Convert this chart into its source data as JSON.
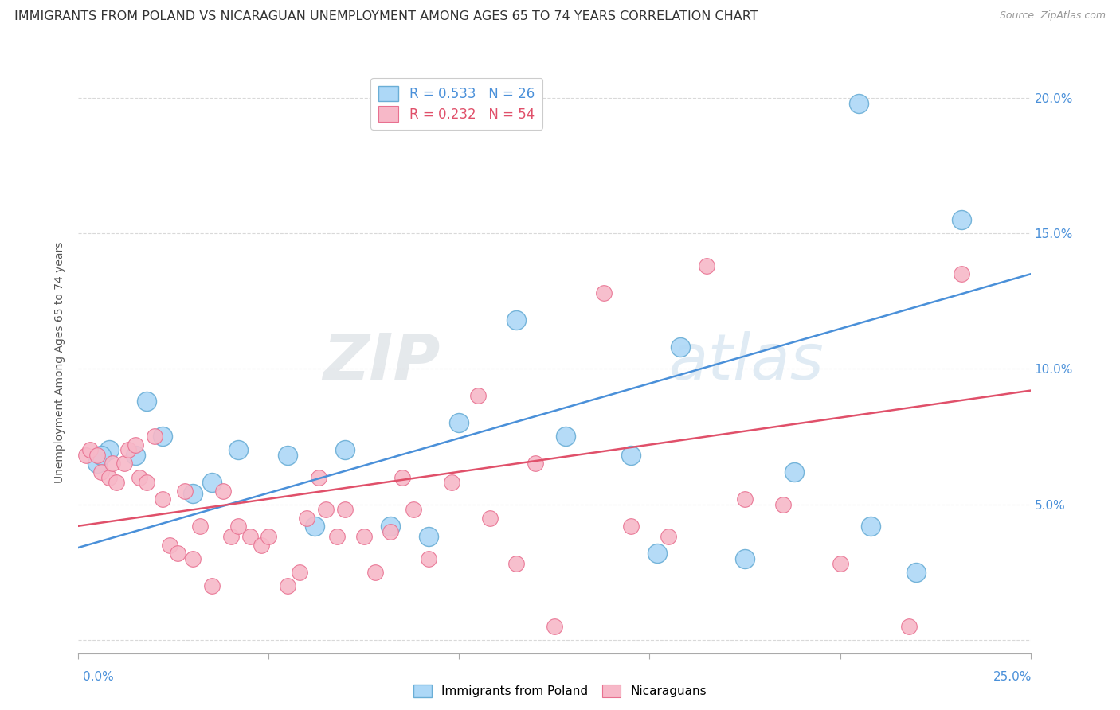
{
  "title": "IMMIGRANTS FROM POLAND VS NICARAGUAN UNEMPLOYMENT AMONG AGES 65 TO 74 YEARS CORRELATION CHART",
  "source": "Source: ZipAtlas.com",
  "ylabel": "Unemployment Among Ages 65 to 74 years",
  "xlim": [
    0.0,
    0.25
  ],
  "ylim": [
    -0.005,
    0.21
  ],
  "xticks": [
    0.0,
    0.05,
    0.1,
    0.15,
    0.2,
    0.25
  ],
  "yticks": [
    0.0,
    0.05,
    0.1,
    0.15,
    0.2
  ],
  "xtick_labels_bottom": [
    "0.0%",
    "",
    "",
    "",
    "",
    "25.0%"
  ],
  "ytick_labels_right": [
    "",
    "5.0%",
    "10.0%",
    "15.0%",
    "20.0%"
  ],
  "blue_R": 0.533,
  "blue_N": 26,
  "pink_R": 0.232,
  "pink_N": 54,
  "blue_fill": "#add8f7",
  "pink_fill": "#f7b8c8",
  "blue_edge": "#6aaed6",
  "pink_edge": "#e87090",
  "blue_line_color": "#4a90d9",
  "pink_line_color": "#e0506a",
  "watermark_text": "ZIPatlas",
  "blue_line_y0": 0.034,
  "blue_line_y1": 0.135,
  "pink_line_y0": 0.042,
  "pink_line_y1": 0.092,
  "blue_scatter_x": [
    0.205,
    0.232,
    0.018,
    0.005,
    0.008,
    0.015,
    0.006,
    0.022,
    0.03,
    0.035,
    0.042,
    0.055,
    0.062,
    0.07,
    0.082,
    0.092,
    0.1,
    0.115,
    0.128,
    0.145,
    0.152,
    0.158,
    0.175,
    0.188,
    0.208,
    0.22
  ],
  "blue_scatter_y": [
    0.198,
    0.155,
    0.088,
    0.065,
    0.07,
    0.068,
    0.068,
    0.075,
    0.054,
    0.058,
    0.07,
    0.068,
    0.042,
    0.07,
    0.042,
    0.038,
    0.08,
    0.118,
    0.075,
    0.068,
    0.032,
    0.108,
    0.03,
    0.062,
    0.042,
    0.025
  ],
  "pink_scatter_x": [
    0.002,
    0.003,
    0.005,
    0.006,
    0.008,
    0.009,
    0.01,
    0.012,
    0.013,
    0.015,
    0.016,
    0.018,
    0.02,
    0.022,
    0.024,
    0.026,
    0.028,
    0.03,
    0.032,
    0.035,
    0.038,
    0.04,
    0.042,
    0.045,
    0.048,
    0.05,
    0.055,
    0.058,
    0.06,
    0.063,
    0.065,
    0.068,
    0.07,
    0.075,
    0.078,
    0.082,
    0.085,
    0.088,
    0.092,
    0.098,
    0.105,
    0.108,
    0.115,
    0.12,
    0.125,
    0.138,
    0.145,
    0.155,
    0.165,
    0.175,
    0.185,
    0.2,
    0.218,
    0.232
  ],
  "pink_scatter_y": [
    0.068,
    0.07,
    0.068,
    0.062,
    0.06,
    0.065,
    0.058,
    0.065,
    0.07,
    0.072,
    0.06,
    0.058,
    0.075,
    0.052,
    0.035,
    0.032,
    0.055,
    0.03,
    0.042,
    0.02,
    0.055,
    0.038,
    0.042,
    0.038,
    0.035,
    0.038,
    0.02,
    0.025,
    0.045,
    0.06,
    0.048,
    0.038,
    0.048,
    0.038,
    0.025,
    0.04,
    0.06,
    0.048,
    0.03,
    0.058,
    0.09,
    0.045,
    0.028,
    0.065,
    0.005,
    0.128,
    0.042,
    0.038,
    0.138,
    0.052,
    0.05,
    0.028,
    0.005,
    0.135
  ],
  "blue_marker_size": 300,
  "pink_marker_size": 200,
  "background_color": "#ffffff",
  "grid_color": "#d0d0d0",
  "title_fontsize": 11.5,
  "ylabel_fontsize": 10,
  "tick_fontsize": 11
}
